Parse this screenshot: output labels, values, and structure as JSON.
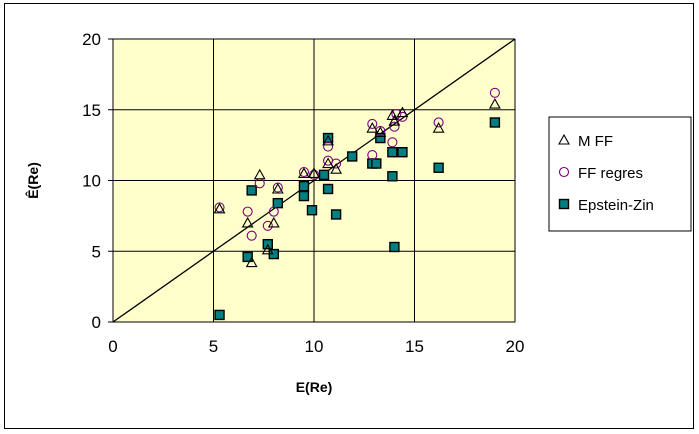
{
  "chart_data": {
    "type": "scatter",
    "xlabel": "E(Re)",
    "ylabel": "Ê(Re)",
    "xlim": [
      0,
      20
    ],
    "ylim": [
      0,
      20
    ],
    "xticks": [
      "0",
      "5",
      "10",
      "15",
      "20"
    ],
    "yticks": [
      "0",
      "5",
      "10",
      "15",
      "20"
    ],
    "grid": true,
    "legend_position": "right",
    "reference_line": {
      "from": [
        0,
        0
      ],
      "to": [
        20,
        20
      ]
    },
    "colors": {
      "plot_background": "#ffffcc",
      "mff": "#000000",
      "ff_regres": "#800080",
      "epstein_zin": "#000000",
      "epstein_zin_fill": "#008080"
    },
    "series": [
      {
        "name": "M FF",
        "marker": "triangle",
        "points": [
          [
            5.3,
            8.0
          ],
          [
            6.7,
            7.0
          ],
          [
            6.9,
            4.2
          ],
          [
            7.3,
            10.4
          ],
          [
            7.7,
            5.1
          ],
          [
            8.0,
            7.0
          ],
          [
            8.2,
            9.4
          ],
          [
            9.5,
            10.5
          ],
          [
            10.0,
            10.5
          ],
          [
            10.7,
            11.2
          ],
          [
            10.7,
            12.8
          ],
          [
            11.1,
            10.8
          ],
          [
            12.9,
            13.7
          ],
          [
            13.3,
            13.4
          ],
          [
            13.9,
            14.6
          ],
          [
            14.0,
            14.2
          ],
          [
            14.4,
            14.8
          ],
          [
            16.2,
            13.7
          ],
          [
            19.0,
            15.4
          ]
        ]
      },
      {
        "name": "FF regres",
        "marker": "circle",
        "points": [
          [
            5.3,
            8.1
          ],
          [
            6.7,
            7.8
          ],
          [
            6.9,
            6.1
          ],
          [
            7.3,
            9.8
          ],
          [
            7.7,
            6.8
          ],
          [
            8.0,
            7.8
          ],
          [
            8.2,
            9.5
          ],
          [
            9.5,
            10.6
          ],
          [
            10.0,
            10.4
          ],
          [
            10.7,
            11.4
          ],
          [
            10.7,
            12.4
          ],
          [
            11.1,
            11.2
          ],
          [
            12.9,
            11.8
          ],
          [
            12.9,
            14.0
          ],
          [
            13.3,
            13.5
          ],
          [
            13.9,
            12.7
          ],
          [
            14.0,
            13.8
          ],
          [
            14.1,
            14.7
          ],
          [
            14.4,
            14.5
          ],
          [
            16.2,
            14.1
          ],
          [
            19.0,
            16.2
          ]
        ]
      },
      {
        "name": "Epstein-Zin",
        "marker": "square",
        "points": [
          [
            5.3,
            0.5
          ],
          [
            6.7,
            4.6
          ],
          [
            6.9,
            9.3
          ],
          [
            7.7,
            5.5
          ],
          [
            8.0,
            4.8
          ],
          [
            8.2,
            8.4
          ],
          [
            9.5,
            8.9
          ],
          [
            9.5,
            9.6
          ],
          [
            9.9,
            7.9
          ],
          [
            10.5,
            10.4
          ],
          [
            10.7,
            9.4
          ],
          [
            10.7,
            13.0
          ],
          [
            11.1,
            7.6
          ],
          [
            11.9,
            11.7
          ],
          [
            12.9,
            11.2
          ],
          [
            13.1,
            11.2
          ],
          [
            13.3,
            13.0
          ],
          [
            13.9,
            10.3
          ],
          [
            13.9,
            12.0
          ],
          [
            14.0,
            5.3
          ],
          [
            14.4,
            12.0
          ],
          [
            16.2,
            10.9
          ],
          [
            19.0,
            14.1
          ]
        ]
      }
    ]
  }
}
